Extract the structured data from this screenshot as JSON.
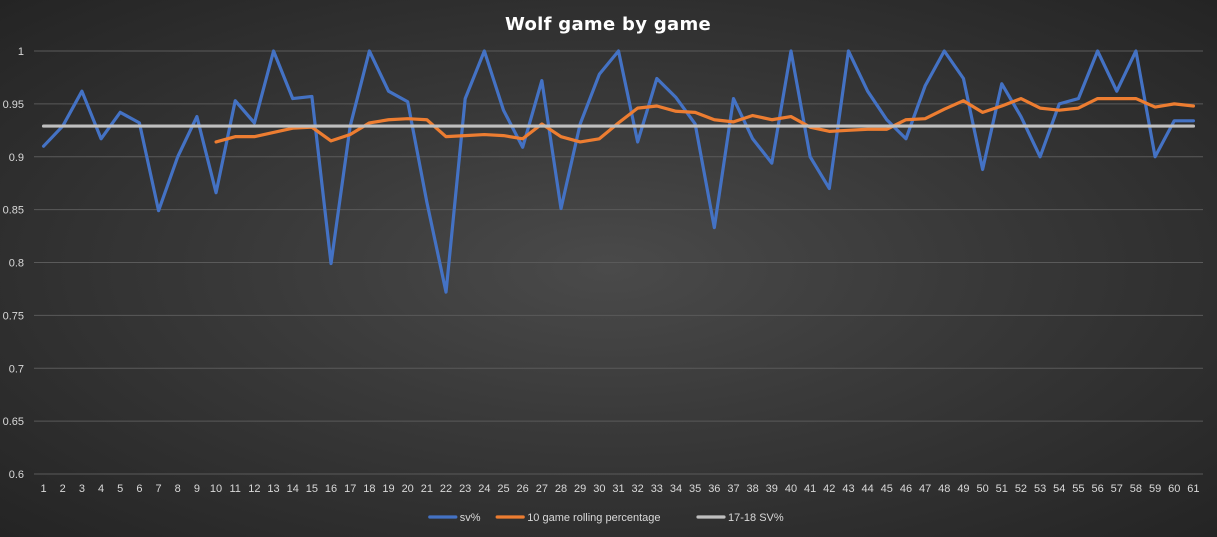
{
  "chart_data": {
    "type": "line",
    "title": "Wolf game by game",
    "xlabel": "",
    "ylabel": "",
    "ylim": [
      0.6,
      1
    ],
    "yticks": [
      "0.6",
      "0.65",
      "0.7",
      "0.75",
      "0.8",
      "0.85",
      "0.9",
      "0.95",
      "1"
    ],
    "categories": [
      "1",
      "2",
      "3",
      "4",
      "5",
      "6",
      "7",
      "8",
      "9",
      "10",
      "11",
      "12",
      "13",
      "14",
      "15",
      "16",
      "17",
      "18",
      "19",
      "20",
      "21",
      "22",
      "23",
      "24",
      "25",
      "26",
      "27",
      "28",
      "29",
      "30",
      "31",
      "32",
      "33",
      "34",
      "35",
      "36",
      "37",
      "38",
      "39",
      "40",
      "41",
      "42",
      "43",
      "44",
      "45",
      "46",
      "47",
      "48",
      "49",
      "50",
      "51",
      "52",
      "53",
      "54",
      "55",
      "56",
      "57",
      "58",
      "59",
      "60",
      "61"
    ],
    "grid": true,
    "legend_position": "bottom",
    "series": [
      {
        "name": "sv%",
        "color": "#4472c4",
        "values": [
          0.91,
          0.929,
          0.962,
          0.917,
          0.942,
          0.932,
          0.849,
          0.9,
          0.938,
          0.866,
          0.953,
          0.932,
          1.0,
          0.955,
          0.957,
          0.799,
          0.929,
          1.0,
          0.962,
          0.952,
          0.857,
          0.772,
          0.955,
          1.0,
          0.944,
          0.909,
          0.972,
          0.851,
          0.931,
          0.978,
          1.0,
          0.914,
          0.974,
          0.956,
          0.931,
          0.833,
          0.955,
          0.917,
          0.894,
          1.0,
          0.9,
          0.87,
          1.0,
          0.962,
          0.935,
          0.917,
          0.967,
          1.0,
          0.974,
          0.888,
          0.969,
          0.938,
          0.9,
          0.95,
          0.955,
          1.0,
          0.962,
          1.0,
          0.9,
          0.934,
          0.934
        ]
      },
      {
        "name": "10 game rolling percentage",
        "color": "#ed7d31",
        "values": [
          null,
          null,
          null,
          null,
          null,
          null,
          null,
          null,
          null,
          0.914,
          0.919,
          0.919,
          0.923,
          0.927,
          0.928,
          0.915,
          0.921,
          0.932,
          0.935,
          0.936,
          0.935,
          0.919,
          0.92,
          0.921,
          0.92,
          0.917,
          0.931,
          0.919,
          0.914,
          0.917,
          0.932,
          0.946,
          0.948,
          0.943,
          0.942,
          0.935,
          0.933,
          0.939,
          0.935,
          0.938,
          0.928,
          0.924,
          0.925,
          0.926,
          0.926,
          0.935,
          0.936,
          0.945,
          0.953,
          0.942,
          0.948,
          0.955,
          0.946,
          0.944,
          0.946,
          0.955,
          0.955,
          0.955,
          0.947,
          0.95,
          0.948
        ]
      },
      {
        "name": "17-18 SV%",
        "color": "#bfbfbf",
        "values": [
          0.929,
          0.929,
          0.929,
          0.929,
          0.929,
          0.929,
          0.929,
          0.929,
          0.929,
          0.929,
          0.929,
          0.929,
          0.929,
          0.929,
          0.929,
          0.929,
          0.929,
          0.929,
          0.929,
          0.929,
          0.929,
          0.929,
          0.929,
          0.929,
          0.929,
          0.929,
          0.929,
          0.929,
          0.929,
          0.929,
          0.929,
          0.929,
          0.929,
          0.929,
          0.929,
          0.929,
          0.929,
          0.929,
          0.929,
          0.929,
          0.929,
          0.929,
          0.929,
          0.929,
          0.929,
          0.929,
          0.929,
          0.929,
          0.929,
          0.929,
          0.929,
          0.929,
          0.929,
          0.929,
          0.929,
          0.929,
          0.929,
          0.929,
          0.929,
          0.929,
          0.929
        ]
      }
    ]
  }
}
